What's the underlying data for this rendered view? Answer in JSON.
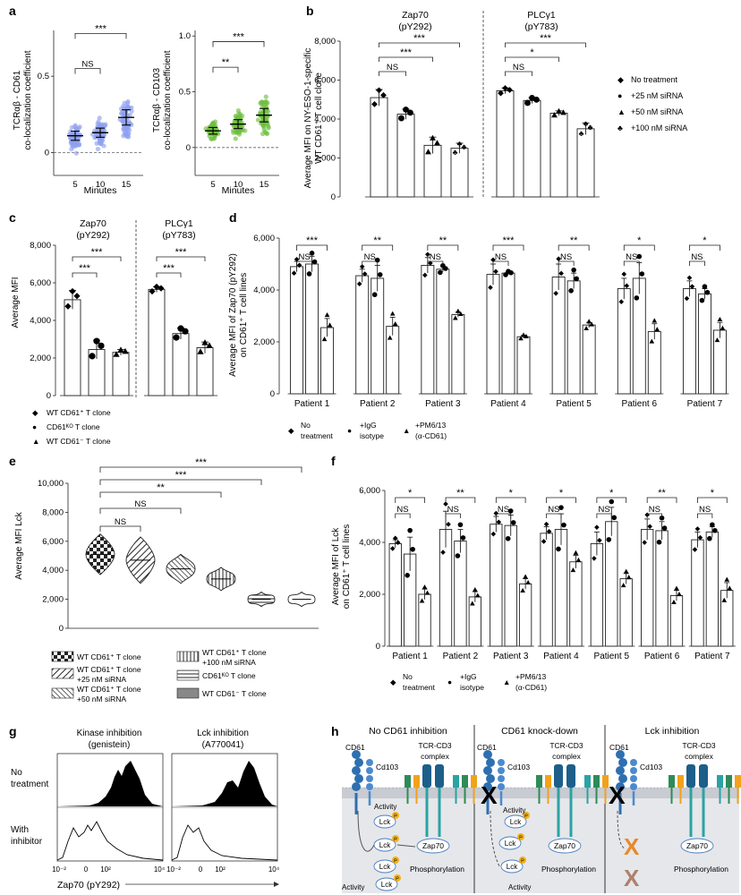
{
  "panel_letters": [
    "a",
    "b",
    "c",
    "d",
    "e",
    "f",
    "g",
    "h"
  ],
  "chart_data": [
    {
      "panel": "a-left",
      "type": "scatter",
      "ylabel_line1": "TCRαβ - CD61",
      "ylabel_line2": "co-localization coefficient",
      "xlabel": "Minutes",
      "categories": [
        "5",
        "10",
        "15"
      ],
      "means": [
        0.11,
        0.13,
        0.23
      ],
      "errors": [
        0.03,
        0.03,
        0.05
      ],
      "ylim": [
        -0.15,
        0.8
      ],
      "yticks": [
        "0",
        "0.5"
      ],
      "color": "#8f9ff0",
      "sig": [
        {
          "label": "***",
          "a": 0,
          "b": 2,
          "y": 0.78
        },
        {
          "label": "NS",
          "a": 0,
          "b": 1,
          "y": 0.55
        }
      ]
    },
    {
      "panel": "a-right",
      "type": "scatter",
      "ylabel_line1": "TCRαβ - CD103",
      "ylabel_line2": "co-localization coefficient",
      "xlabel": "Minutes",
      "categories": [
        "5",
        "10",
        "15"
      ],
      "means": [
        0.15,
        0.21,
        0.29
      ],
      "errors": [
        0.03,
        0.04,
        0.06
      ],
      "ylim": [
        -0.25,
        1.05
      ],
      "yticks": [
        "0",
        "0.5",
        "1.0"
      ],
      "color": "#6fbf3f",
      "sig": [
        {
          "label": "***",
          "a": 0,
          "b": 2,
          "y": 0.95
        },
        {
          "label": "**",
          "a": 0,
          "b": 1,
          "y": 0.72
        }
      ]
    },
    {
      "panel": "b",
      "type": "bar",
      "ylabel_line1": "Average MFI on NY-ESO-1-specific",
      "ylabel_line2": "WT CD61⁺ T cell clone",
      "groups": [
        {
          "title1": "Zap70",
          "title2": "(pY292)",
          "values": [
            5100,
            4250,
            2650,
            2500
          ],
          "errors": [
            420,
            260,
            420,
            260
          ]
        },
        {
          "title1": "PLCγ1",
          "title2": "(pY783)",
          "values": [
            5450,
            4950,
            4300,
            3500
          ],
          "errors": [
            150,
            150,
            120,
            300
          ]
        }
      ],
      "ylim": [
        0,
        8000
      ],
      "yticks": [
        "0",
        "2,000",
        "4,000",
        "6,000",
        "8,000"
      ],
      "legend": [
        "No treatment",
        "+25 nM siRNA",
        "+50 nM siRNA",
        "+100 nM siRNA"
      ],
      "sig": [
        {
          "label": "NS",
          "g": 0,
          "a": 0,
          "b": 1
        },
        {
          "label": "***",
          "g": 0,
          "a": 0,
          "b": 2
        },
        {
          "label": "***",
          "g": 0,
          "a": 0,
          "b": 3
        },
        {
          "label": "NS",
          "g": 1,
          "a": 0,
          "b": 1
        },
        {
          "label": "*",
          "g": 1,
          "a": 0,
          "b": 2
        },
        {
          "label": "***",
          "g": 1,
          "a": 0,
          "b": 3
        }
      ]
    },
    {
      "panel": "c",
      "type": "bar",
      "ylabel": "Average MFI",
      "groups": [
        {
          "title1": "Zap70",
          "title2": "(pY292)",
          "values": [
            5100,
            2450,
            2300
          ],
          "errors": [
            500,
            500,
            150
          ]
        },
        {
          "title1": "PLCγ1",
          "title2": "(pY783)",
          "values": [
            5650,
            3300,
            2550
          ],
          "errors": [
            150,
            300,
            300
          ]
        }
      ],
      "ylim": [
        0,
        8000
      ],
      "yticks": [
        "0",
        "2,000",
        "4,000",
        "6,000",
        "8,000"
      ],
      "legend": [
        "WT CD61⁺ T clone",
        "CD61ᴷᴼ T clone",
        "WT CD61⁻ T clone"
      ],
      "sig": [
        {
          "label": "***",
          "g": 0,
          "a": 0,
          "b": 1
        },
        {
          "label": "***",
          "g": 0,
          "a": 0,
          "b": 2
        },
        {
          "label": "***",
          "g": 1,
          "a": 0,
          "b": 1
        },
        {
          "label": "***",
          "g": 1,
          "a": 0,
          "b": 2
        }
      ]
    },
    {
      "panel": "d",
      "type": "bar",
      "ylabel_line1": "Average MFI of Zap70 (pY292)",
      "ylabel_line2": "on CD61⁺ T cell lines",
      "categories": [
        "Patient 1",
        "Patient 2",
        "Patient 3",
        "Patient 4",
        "Patient 5",
        "Patient 6",
        "Patient 7"
      ],
      "series": [
        {
          "name": "No treatment",
          "values": [
            4900,
            4550,
            4950,
            4600,
            4500,
            4050,
            4050
          ],
          "errors": [
            200,
            250,
            300,
            400,
            500,
            400,
            300
          ]
        },
        {
          "name": "+IgG isotype",
          "values": [
            5000,
            4450,
            4800,
            4650,
            4350,
            4450,
            3850
          ],
          "errors": [
            300,
            500,
            100,
            50,
            300,
            600,
            200
          ]
        },
        {
          "name": "+PM6/13 (α-CD61)",
          "values": [
            2550,
            2600,
            3050,
            2200,
            2650,
            2400,
            2450
          ],
          "errors": [
            350,
            350,
            100,
            50,
            100,
            300,
            300
          ]
        }
      ],
      "sig_nt_vs_pm": [
        "***",
        "**",
        "**",
        "***",
        "**",
        "*",
        "*"
      ],
      "sig_nt_vs_igg": [
        "NS",
        "NS",
        "NS",
        "NS",
        "NS",
        "NS",
        "NS"
      ],
      "ylim": [
        0,
        6000
      ],
      "yticks": [
        "0",
        "2,000",
        "4,000",
        "6,000"
      ],
      "legend": [
        "No",
        "treatment",
        "+IgG",
        "isotype",
        "+PM6/13",
        "(α-CD61)"
      ]
    },
    {
      "panel": "e",
      "type": "violin",
      "ylabel": "Average MFI Lck",
      "centers": [
        5100,
        4700,
        4100,
        3400,
        2000,
        2000
      ],
      "widths": [
        1400,
        1600,
        1000,
        800,
        500,
        500
      ],
      "ylim": [
        0,
        10000
      ],
      "yticks": [
        "0",
        "2,000",
        "4,000",
        "6,000",
        "8,000",
        "10,000"
      ],
      "sig": [
        "NS",
        "NS",
        "**",
        "***",
        "***"
      ],
      "legend": [
        "WT CD61⁺ T clone",
        "WT CD61⁺ T clone",
        "+25 nM siRNA",
        "WT CD61⁺ T clone",
        "+50 nM siRNA",
        "WT CD61⁺ T clone",
        "+100 nM siRNA",
        "CD61ᴷᴼ T clone",
        "WT CD61⁻ T clone"
      ]
    },
    {
      "panel": "f",
      "type": "bar",
      "ylabel_line1": "Average MFI of Lck",
      "ylabel_line2": "on CD61⁺ T cell lines",
      "categories": [
        "Patient 1",
        "Patient 2",
        "Patient 3",
        "Patient 4",
        "Patient 5",
        "Patient 6",
        "Patient 7"
      ],
      "series": [
        {
          "name": "No treatment",
          "values": [
            3950,
            4500,
            4700,
            4350,
            3950,
            4500,
            4100
          ],
          "errors": [
            150,
            700,
            300,
            250,
            450,
            400,
            300
          ]
        },
        {
          "name": "+IgG isotype",
          "values": [
            3550,
            4050,
            4650,
            4500,
            4800,
            4450,
            4400
          ],
          "errors": [
            650,
            450,
            400,
            600,
            550,
            350,
            200
          ]
        },
        {
          "name": "+PM6/13 (α-CD61)",
          "values": [
            2000,
            1900,
            2400,
            3250,
            2600,
            1950,
            2150
          ],
          "errors": [
            200,
            200,
            200,
            250,
            200,
            200,
            300
          ]
        }
      ],
      "sig_nt_vs_pm": [
        "*",
        "**",
        "*",
        "*",
        "*",
        "**",
        "*"
      ],
      "sig_nt_vs_igg": [
        "NS",
        "NS",
        "NS",
        "NS",
        "NS",
        "NS",
        "NS"
      ],
      "ylim": [
        0,
        6000
      ],
      "yticks": [
        "0",
        "2,000",
        "4,000",
        "6,000"
      ],
      "legend": [
        "No",
        "treatment",
        "+IgG",
        "isotype",
        "+PM6/13",
        "(α-CD61)"
      ]
    }
  ],
  "panel_g": {
    "col1_title": "Kinase inhibition",
    "col1_sub": "(genistein)",
    "col2_title": "Lck inhibition",
    "col2_sub": "(A770041)",
    "row1_a": "No",
    "row1_b": "treatment",
    "row2_a": "With",
    "row2_b": "inhibitor",
    "xticks": [
      "10⁻²",
      "0",
      "10²",
      "10⁴"
    ],
    "xlabel": "Zap70 (pY292)"
  },
  "panel_h": {
    "titles": [
      "No CD61 inhibition",
      "CD61 knock-down",
      "Lck inhibition"
    ],
    "cd61": "CD61",
    "cd103": "Cd103",
    "tcr1": "TCR-CD3",
    "tcr2": "complex",
    "lck": "Lck",
    "zap": "Zap70",
    "act": "Activity",
    "phos": "Phosphorylation",
    "p": "P"
  }
}
